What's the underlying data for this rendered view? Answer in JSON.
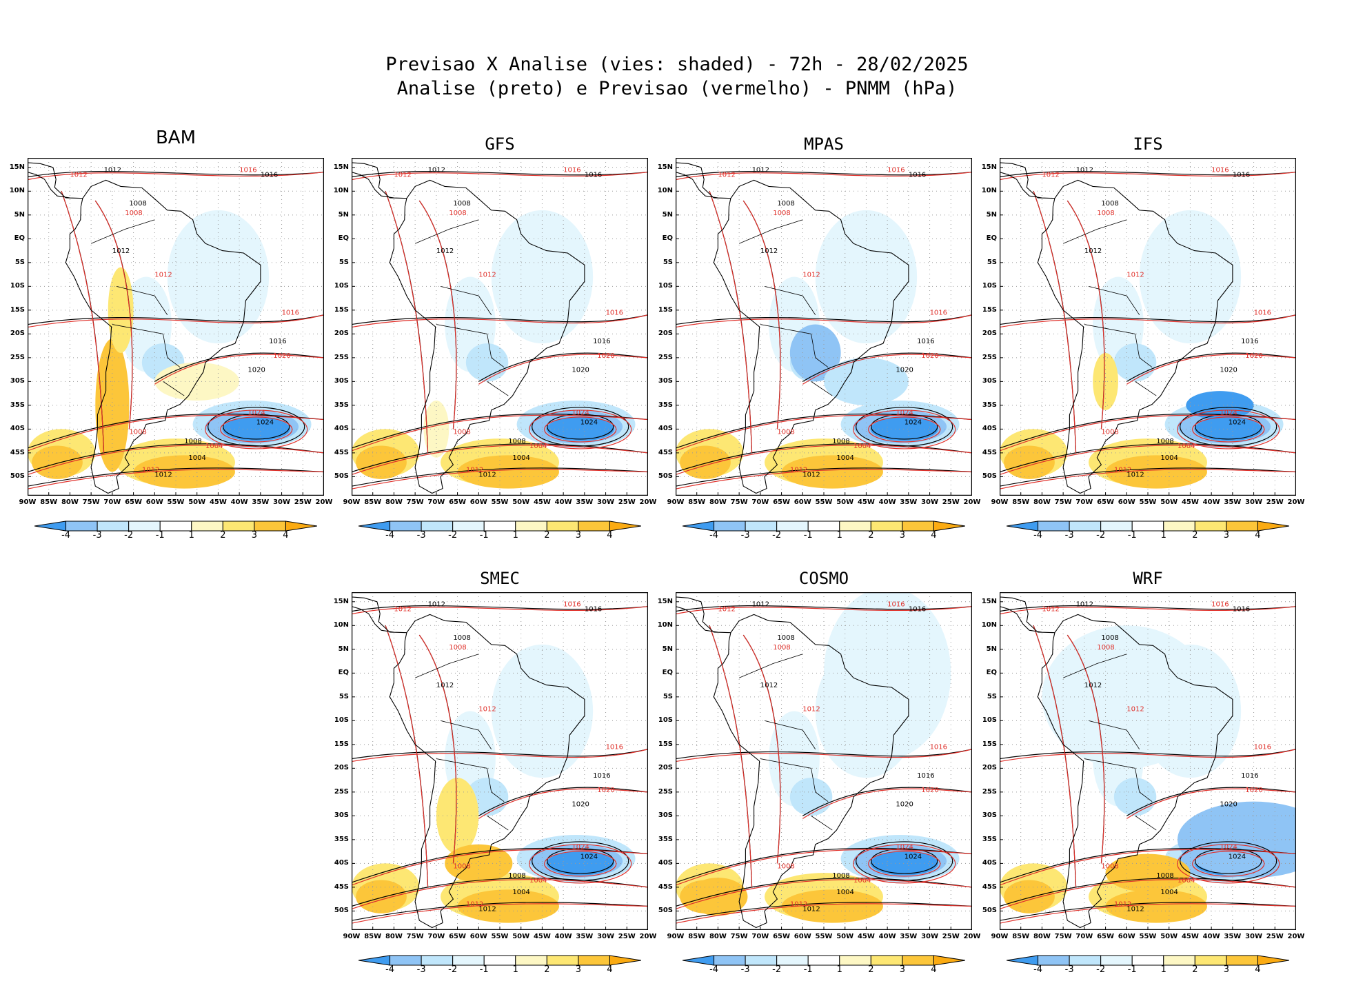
{
  "header": {
    "line1": "Previsao X Analise (vies: shaded) - 72h - 28/02/2025",
    "line2": "Analise (preto) e Previsao (vermelho) - PNMM (hPa)"
  },
  "colors": {
    "neg4": "#3f9cf0",
    "neg3": "#8fc4f5",
    "neg2": "#c0e6fb",
    "neg1": "#e4f6fd",
    "zero": "#ffffff",
    "pos1": "#fdf7c4",
    "pos2": "#fde773",
    "pos3": "#fcc63a",
    "pos4": "#fbab12",
    "analysis": "#000000",
    "forecast": "#e0302a"
  },
  "axes": {
    "lat_labels": [
      "15N",
      "10N",
      "5N",
      "EQ",
      "5S",
      "10S",
      "15S",
      "20S",
      "25S",
      "30S",
      "35S",
      "40S",
      "45S",
      "50S"
    ],
    "lon_labels": [
      "90W",
      "85W",
      "80W",
      "75W",
      "70W",
      "65W",
      "60W",
      "55W",
      "50W",
      "45W",
      "40W",
      "35W",
      "30W",
      "25W",
      "20W"
    ]
  },
  "colorbar": {
    "labels": [
      "-4",
      "-3",
      "-2",
      "-1",
      "1",
      "2",
      "3",
      "4"
    ]
  },
  "panels": [
    {
      "id": "bam",
      "title": "BAM",
      "labels": [
        "1012",
        "1016",
        "1008",
        "1012",
        "1016",
        "1020",
        "1024",
        "1008",
        "1004",
        "1012"
      ]
    },
    {
      "id": "gfs",
      "title": "GFS",
      "labels": [
        "1012",
        "1016",
        "1008",
        "1012",
        "1016",
        "1020",
        "1024",
        "1008",
        "1004",
        "1012"
      ]
    },
    {
      "id": "mpas",
      "title": "MPAS",
      "labels": [
        "1012",
        "1016",
        "1008",
        "1012",
        "1016",
        "1020",
        "1024",
        "1008",
        "1004",
        "1012"
      ]
    },
    {
      "id": "ifs",
      "title": "IFS",
      "labels": [
        "1012",
        "1016",
        "1008",
        "1012",
        "1016",
        "1020",
        "1024",
        "1008",
        "1004",
        "1012"
      ]
    },
    {
      "id": "smec",
      "title": "SMEC",
      "labels": [
        "1012",
        "1016",
        "1008",
        "1012",
        "1016",
        "1020",
        "1024",
        "1008",
        "1004",
        "1012"
      ]
    },
    {
      "id": "cosmo",
      "title": "COSMO",
      "labels": [
        "1012",
        "1016",
        "1008",
        "1012",
        "1016",
        "1020",
        "1024",
        "1008",
        "1004",
        "1012"
      ]
    },
    {
      "id": "wrf",
      "title": "WRF",
      "labels": [
        "1012",
        "1016",
        "1008",
        "1012",
        "1016",
        "1020",
        "1024",
        "1008",
        "1004",
        "1012"
      ]
    }
  ]
}
